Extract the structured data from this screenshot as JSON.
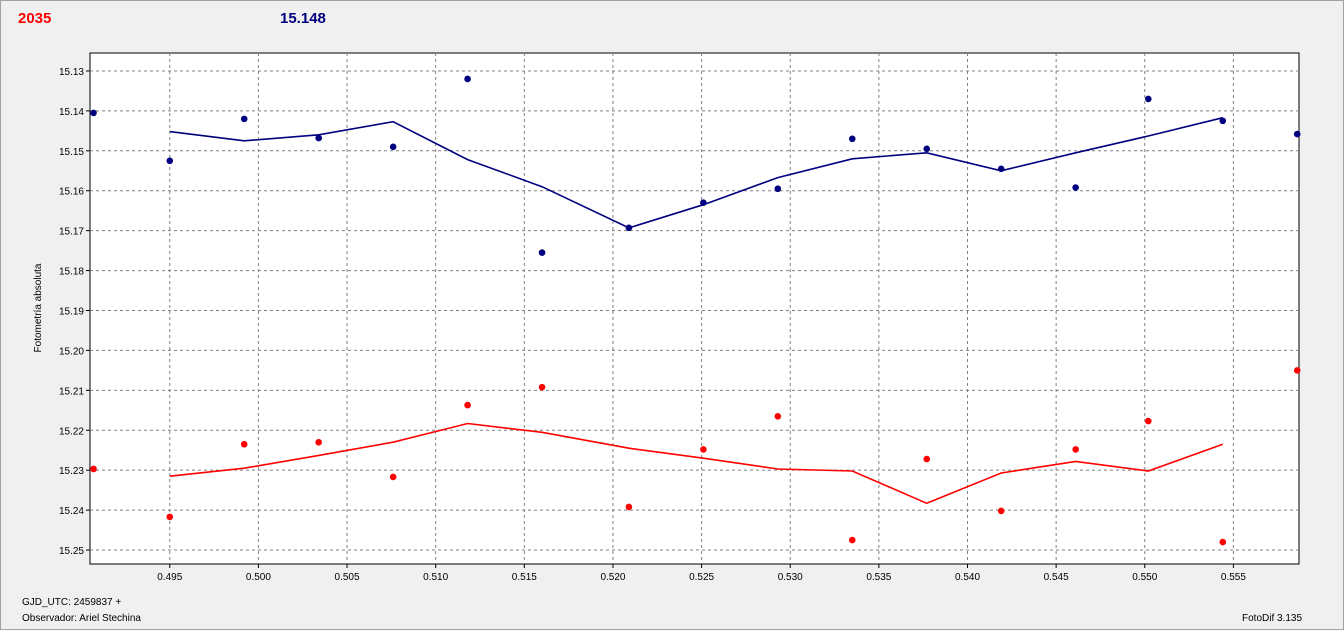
{
  "header": {
    "left_value": "2035",
    "right_value": "15.148",
    "left_color": "#ff0000",
    "right_color": "#00007f"
  },
  "footer": {
    "gjd": "GJD_UTC: 2459837 +",
    "observer": "Observador: Ariel Stechina",
    "version": "FotoDif 3.135"
  },
  "chart_data": {
    "type": "scatter",
    "ylabel": "Fotometría absoluta",
    "xlabel": "",
    "xlim": [
      0.4905,
      0.5587
    ],
    "ylim": [
      15.1255,
      15.2535
    ],
    "y_inverted": true,
    "grid": true,
    "x_ticks": [
      0.495,
      0.5,
      0.505,
      0.51,
      0.515,
      0.52,
      0.525,
      0.53,
      0.535,
      0.54,
      0.545,
      0.55,
      0.555
    ],
    "x_tick_labels": [
      "0.495",
      "0.500",
      "0.505",
      "0.510",
      "0.515",
      "0.520",
      "0.525",
      "0.530",
      "0.535",
      "0.540",
      "0.545",
      "0.550",
      "0.555"
    ],
    "y_ticks": [
      15.13,
      15.14,
      15.15,
      15.16,
      15.17,
      15.18,
      15.19,
      15.2,
      15.21,
      15.22,
      15.23,
      15.24,
      15.25
    ],
    "y_tick_labels": [
      "15.13",
      "15.14",
      "15.15",
      "15.16",
      "15.17",
      "15.18",
      "15.19",
      "15.20",
      "15.21",
      "15.22",
      "15.23",
      "15.24",
      "15.25"
    ],
    "series": [
      {
        "color": "#00007f",
        "points_x": [
          0.4907,
          0.495,
          0.4992,
          0.5034,
          0.5076,
          0.5118,
          0.516,
          0.5209,
          0.5251,
          0.5293,
          0.5335,
          0.5377,
          0.5419,
          0.5461,
          0.5502,
          0.5544,
          0.5586
        ],
        "points_y": [
          15.1405,
          15.1525,
          15.142,
          15.1468,
          15.149,
          15.132,
          15.1755,
          15.1693,
          15.163,
          15.1595,
          15.147,
          15.1495,
          15.1545,
          15.1592,
          15.137,
          15.1425,
          15.1458
        ],
        "line_x": [
          0.495,
          0.4992,
          0.5034,
          0.5076,
          0.5118,
          0.516,
          0.5209,
          0.5251,
          0.5293,
          0.5335,
          0.5377,
          0.5419,
          0.5461,
          0.5502,
          0.5544
        ],
        "line_y": [
          15.1452,
          15.1475,
          15.146,
          15.1427,
          15.1522,
          15.159,
          15.1693,
          15.1635,
          15.1567,
          15.152,
          15.1505,
          15.155,
          15.1505,
          15.1463,
          15.1417
        ]
      },
      {
        "color": "#ff0000",
        "points_x": [
          0.4907,
          0.495,
          0.4992,
          0.5034,
          0.5076,
          0.5118,
          0.516,
          0.5209,
          0.5251,
          0.5293,
          0.5335,
          0.5377,
          0.5419,
          0.5461,
          0.5502,
          0.5544,
          0.5586
        ],
        "points_y": [
          15.2297,
          15.2417,
          15.2235,
          15.223,
          15.2317,
          15.2137,
          15.2092,
          15.2392,
          15.2248,
          15.2165,
          15.2475,
          15.2272,
          15.2402,
          15.2248,
          15.2177,
          15.248,
          15.205
        ],
        "line_x": [
          0.495,
          0.4992,
          0.5034,
          0.5076,
          0.5118,
          0.516,
          0.5209,
          0.5251,
          0.5293,
          0.5335,
          0.5377,
          0.5419,
          0.5461,
          0.5502,
          0.5544
        ],
        "line_y": [
          15.2315,
          15.2295,
          15.2263,
          15.223,
          15.2183,
          15.2205,
          15.2245,
          15.227,
          15.2297,
          15.2302,
          15.2383,
          15.2307,
          15.2278,
          15.2302,
          15.2235
        ]
      }
    ]
  }
}
